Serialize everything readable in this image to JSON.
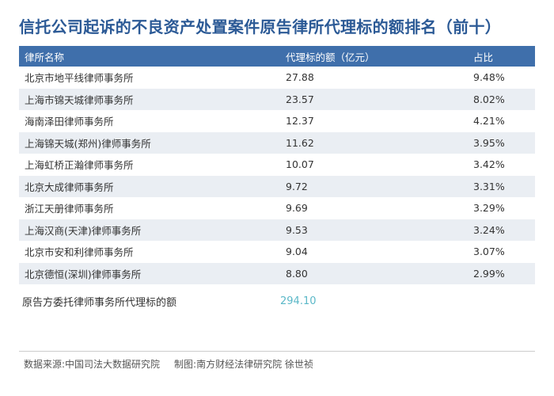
{
  "title": "信托公司起诉的不良资产处置案件原告律所代理标的额排名（前十）",
  "table": {
    "headers": [
      "律所名称",
      "代理标的额（亿元）",
      "占比"
    ],
    "rows": [
      {
        "name": "北京市地平线律师事务所",
        "amount": "27.88",
        "share": "9.48%"
      },
      {
        "name": "上海市锦天城律师事务所",
        "amount": "23.57",
        "share": "8.02%"
      },
      {
        "name": "海南泽田律师事务所",
        "amount": "12.37",
        "share": "4.21%"
      },
      {
        "name": "上海锦天城(郑州)律师事务所",
        "amount": "11.62",
        "share": "3.95%"
      },
      {
        "name": "上海虹桥正瀚律师事务所",
        "amount": "10.07",
        "share": "3.42%"
      },
      {
        "name": "北京大成律师事务所",
        "amount": "9.72",
        "share": "3.31%"
      },
      {
        "name": "浙江天册律师事务所",
        "amount": "9.69",
        "share": "3.29%"
      },
      {
        "name": "上海汉商(天津)律师事务所",
        "amount": "9.53",
        "share": "3.24%"
      },
      {
        "name": "北京市安和利律师事务所",
        "amount": "9.04",
        "share": "3.07%"
      },
      {
        "name": "北京德恒(深圳)律师事务所",
        "amount": "8.80",
        "share": "2.99%"
      }
    ]
  },
  "total": {
    "label": "原告方委托律师事务所代理标的额",
    "value": "294.10"
  },
  "footer": {
    "source": "数据来源:中国司法大数据研究院",
    "credit": "制图:南方财经法律研究院 徐世祯"
  },
  "colors": {
    "title": "#2c5a96",
    "header_bg": "#3f6fab",
    "alt_row": "#eaeef3",
    "total_value": "#5bb8c8"
  }
}
